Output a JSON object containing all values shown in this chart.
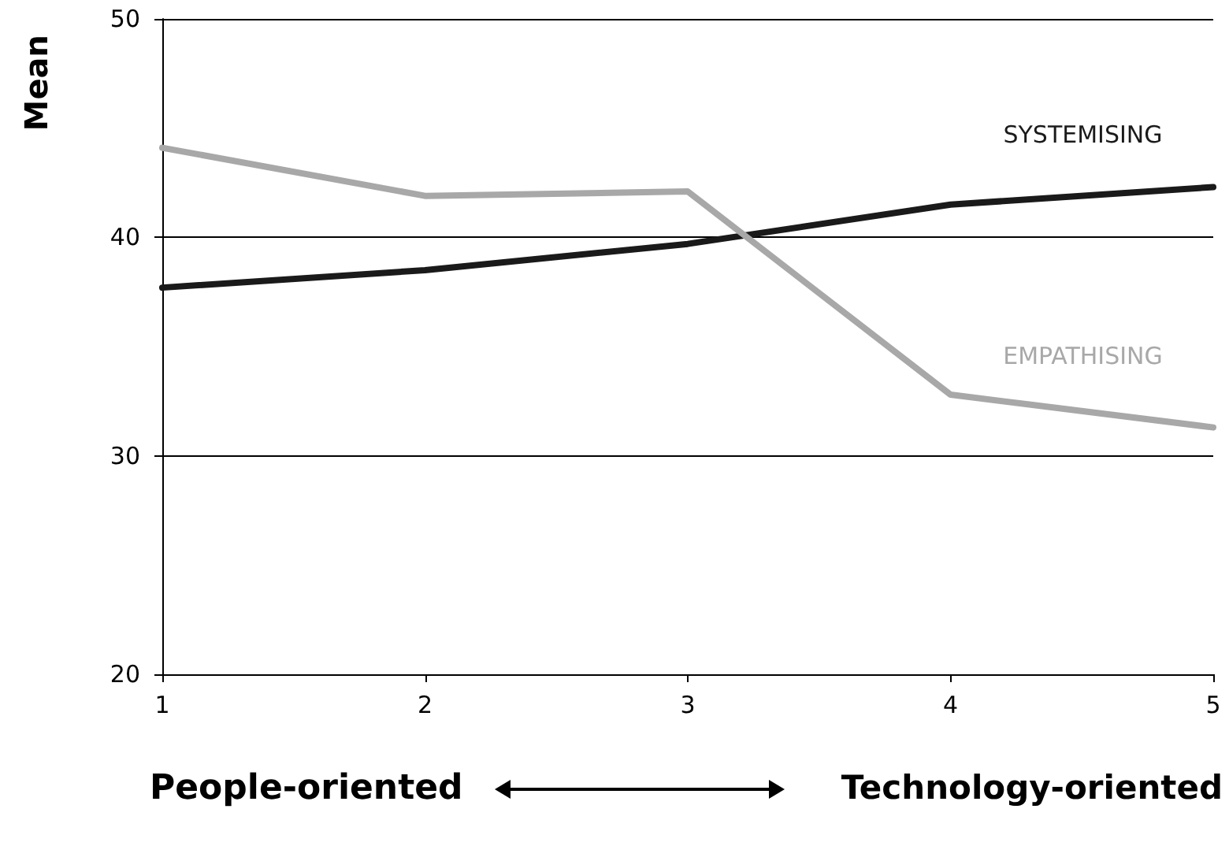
{
  "chart_data": {
    "type": "line",
    "ylabel": "Mean",
    "annotations": [
      "People-oriented",
      "Technology-oriented"
    ],
    "x": [
      1,
      2,
      3,
      4,
      5
    ],
    "xlim": [
      1,
      5
    ],
    "xticks": [
      1,
      2,
      3,
      4,
      5
    ],
    "ylim": [
      20,
      50
    ],
    "yticks": [
      20,
      30,
      40,
      50
    ],
    "grid": "y",
    "marker": "none",
    "line_style": "solid",
    "series": [
      {
        "name": "SYSTEMISING",
        "color": "#1a1a1a",
        "values": [
          37.7,
          38.5,
          39.7,
          41.5,
          42.3
        ]
      },
      {
        "name": "EMPATHISING",
        "color": "#a8a8a8",
        "values": [
          44.1,
          41.9,
          42.1,
          32.8,
          31.3
        ]
      }
    ]
  }
}
